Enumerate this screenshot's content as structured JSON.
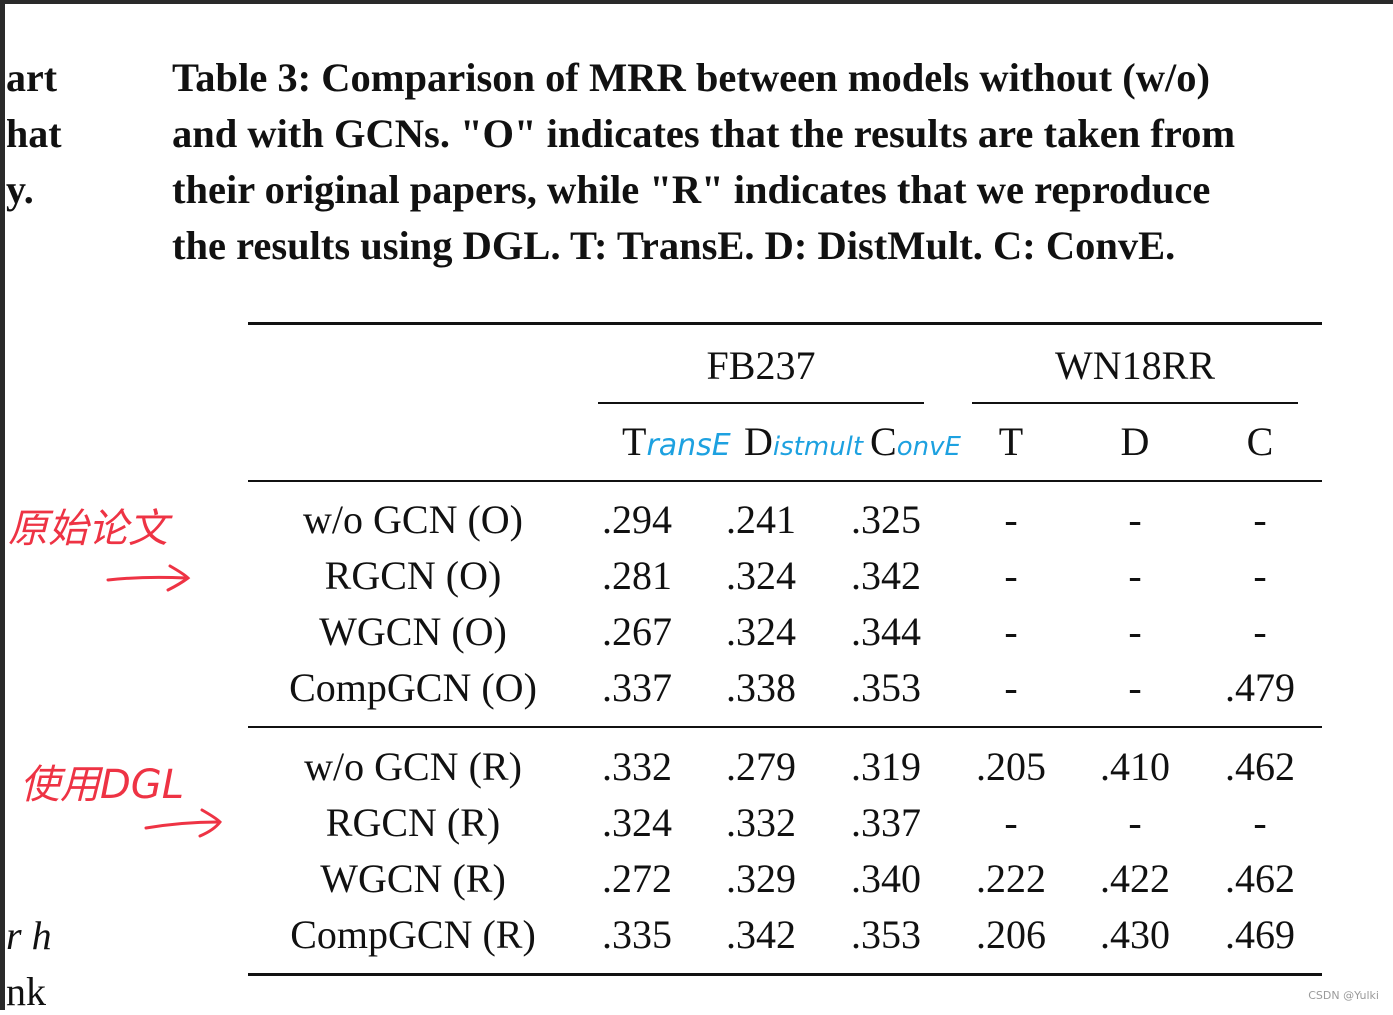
{
  "left_fragments": [
    "art",
    "hat",
    "y.",
    "r h",
    "nk"
  ],
  "caption": {
    "lines": [
      "Table 3: Comparison of MRR between models without (w/o)",
      "and with GCNs. \"O\" indicates that the results are taken from",
      "their original papers, while \"R\" indicates that we reproduce",
      "the results using DGL. T: TransE. D: DistMult. C: ConvE."
    ]
  },
  "table": {
    "groups": [
      "FB237",
      "WN18RR"
    ],
    "fb237_sub": [
      "T",
      "D",
      "C"
    ],
    "wn18rr_sub": [
      "T",
      "D",
      "C"
    ],
    "rows_original": [
      {
        "model": "w/o GCN (O)",
        "cells": [
          ".294",
          ".241",
          ".325",
          "-",
          "-",
          "-"
        ]
      },
      {
        "model": "RGCN (O)",
        "cells": [
          ".281",
          ".324",
          ".342",
          "-",
          "-",
          "-"
        ]
      },
      {
        "model": "WGCN (O)",
        "cells": [
          ".267",
          ".324",
          ".344",
          "-",
          "-",
          "-"
        ]
      },
      {
        "model": "CompGCN (O)",
        "cells": [
          ".337",
          ".338",
          ".353",
          "-",
          "-",
          ".479"
        ]
      }
    ],
    "rows_reproduced": [
      {
        "model": "w/o GCN (R)",
        "cells": [
          ".332",
          ".279",
          ".319",
          ".205",
          ".410",
          ".462"
        ]
      },
      {
        "model": "RGCN (R)",
        "cells": [
          ".324",
          ".332",
          ".337",
          "-",
          "-",
          "-"
        ]
      },
      {
        "model": "WGCN (R)",
        "cells": [
          ".272",
          ".329",
          ".340",
          ".222",
          ".422",
          ".462"
        ]
      },
      {
        "model": "CompGCN (R)",
        "cells": [
          ".335",
          ".342",
          ".353",
          ".206",
          ".430",
          ".469"
        ]
      }
    ]
  },
  "annotations": {
    "blue_notes": [
      "ransE",
      "istmult",
      "onvE"
    ],
    "red_note_1": "原始论文",
    "red_note_2": "使用DGL",
    "colors": {
      "blue": "#1da1e0",
      "red": "#ee3344"
    }
  },
  "watermark": "CSDN @Yulki"
}
